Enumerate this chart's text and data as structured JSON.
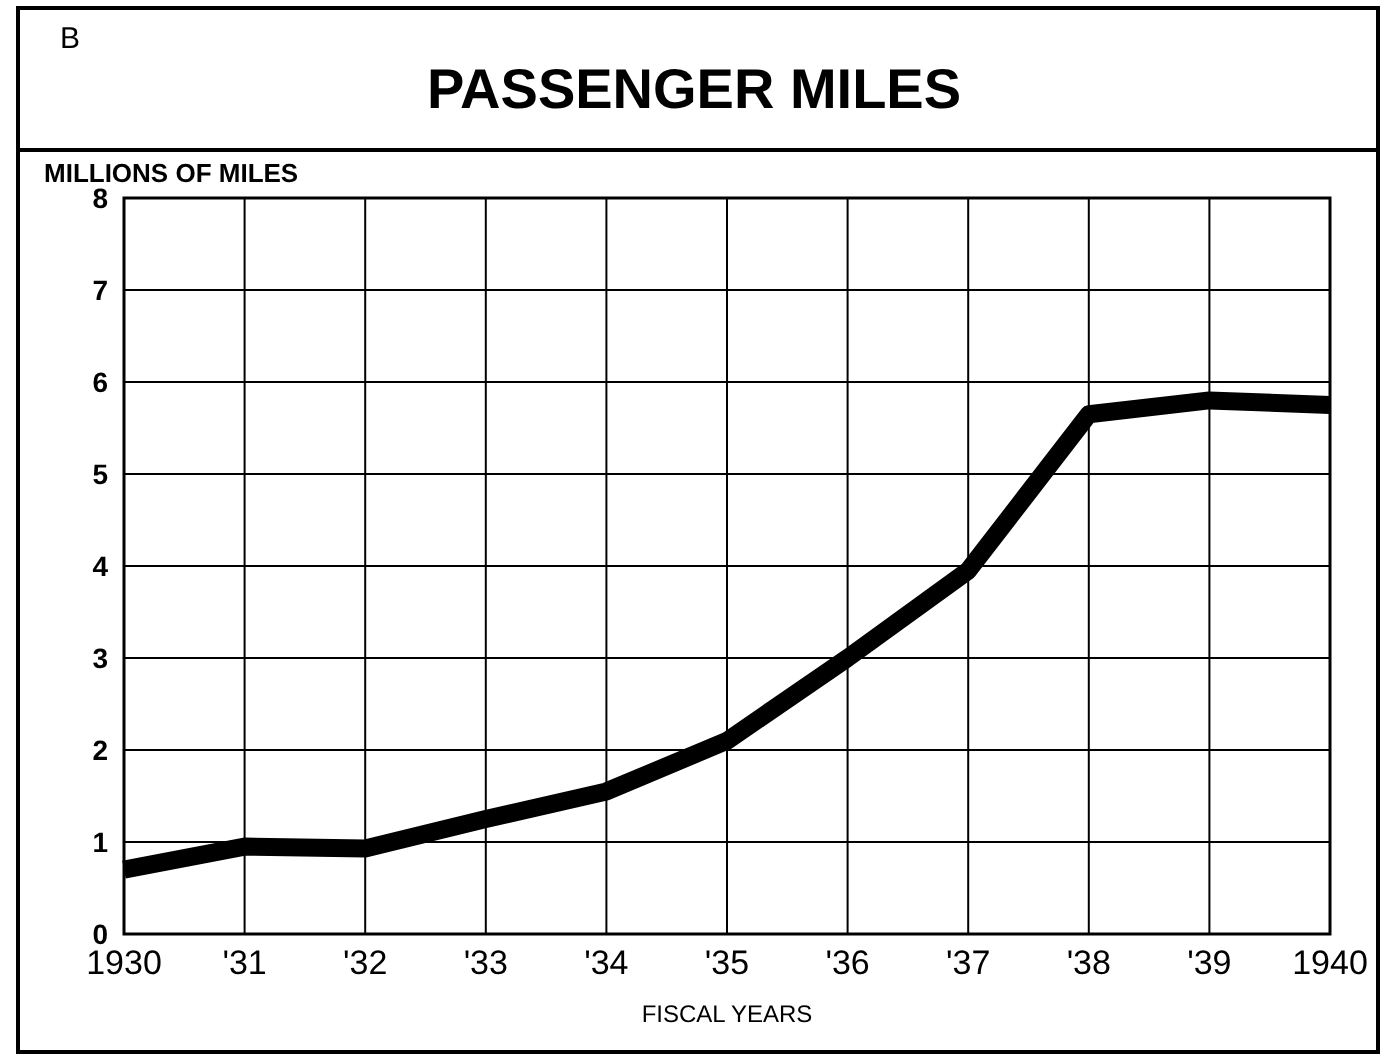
{
  "chart_data": {
    "type": "line",
    "title": "PASSENGER MILES",
    "ylabel": "MILLIONS OF MILES",
    "xlabel": "FISCAL YEARS",
    "annotations": [
      "B"
    ],
    "x": [
      1930,
      1931,
      1932,
      1933,
      1934,
      1935,
      1936,
      1937,
      1938,
      1939,
      1940
    ],
    "series": [
      {
        "color": "#000000",
        "values": [
          0.7,
          0.95,
          0.93,
          1.25,
          1.55,
          2.1,
          3.0,
          3.95,
          5.65,
          5.8,
          5.75
        ]
      }
    ],
    "xlim": [
      1930,
      1940
    ],
    "xticks": [
      1930,
      {
        "value": 1931,
        "label": "'31"
      },
      {
        "value": 1932,
        "label": "'32"
      },
      {
        "value": 1933,
        "label": "'33"
      },
      {
        "value": 1934,
        "label": "'34"
      },
      {
        "value": 1935,
        "label": "'35"
      },
      {
        "value": 1936,
        "label": "'36"
      },
      {
        "value": 1937,
        "label": "'37"
      },
      {
        "value": 1938,
        "label": "'38"
      },
      {
        "value": 1939,
        "label": "'39"
      },
      1940
    ],
    "ylim": [
      0,
      8
    ],
    "yticks": [
      0,
      1,
      2,
      3,
      4,
      5,
      6,
      7,
      8
    ],
    "grid": true,
    "marker": "none",
    "line_style": "solid"
  }
}
